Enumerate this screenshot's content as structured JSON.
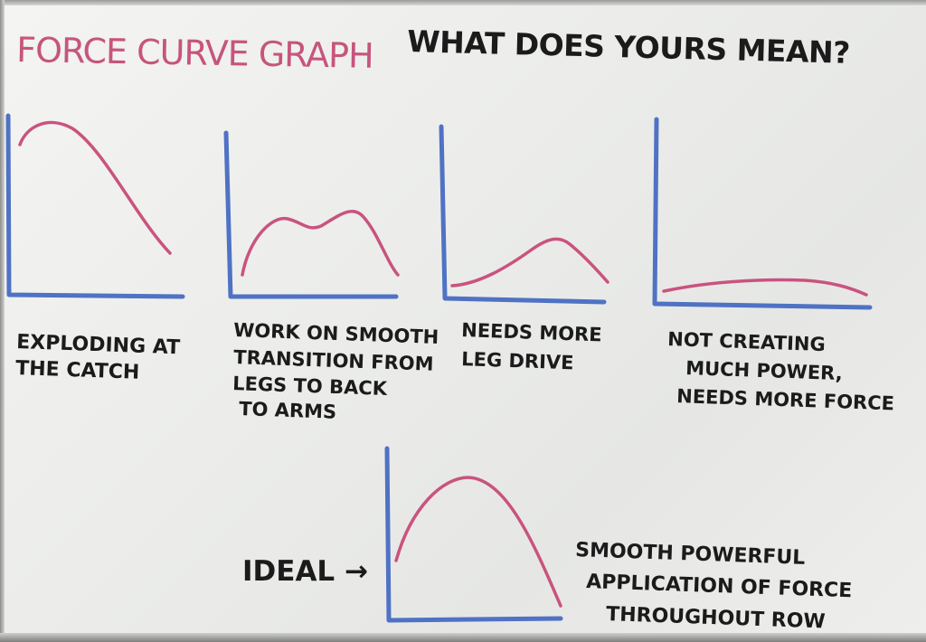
{
  "title": "Force Curve Graph",
  "question": "What does yours mean?",
  "graphs": [
    {
      "lines": [
        "Exploding at",
        "the catch"
      ]
    },
    {
      "lines": [
        "Work on smooth",
        "transition from",
        "legs to back",
        "to arms"
      ]
    },
    {
      "lines": [
        "Needs more",
        "leg drive"
      ]
    },
    {
      "lines": [
        "Not creating",
        "much power,",
        "needs more force"
      ]
    }
  ],
  "ideal": {
    "label": "IDEAL →",
    "lines": [
      "Smooth powerful",
      "application of force",
      "throughout row"
    ]
  },
  "colors": {
    "curve": "#c9537f",
    "axis": "#4f72c4",
    "ink": "#1b1b1b",
    "title": "#c6557d"
  }
}
